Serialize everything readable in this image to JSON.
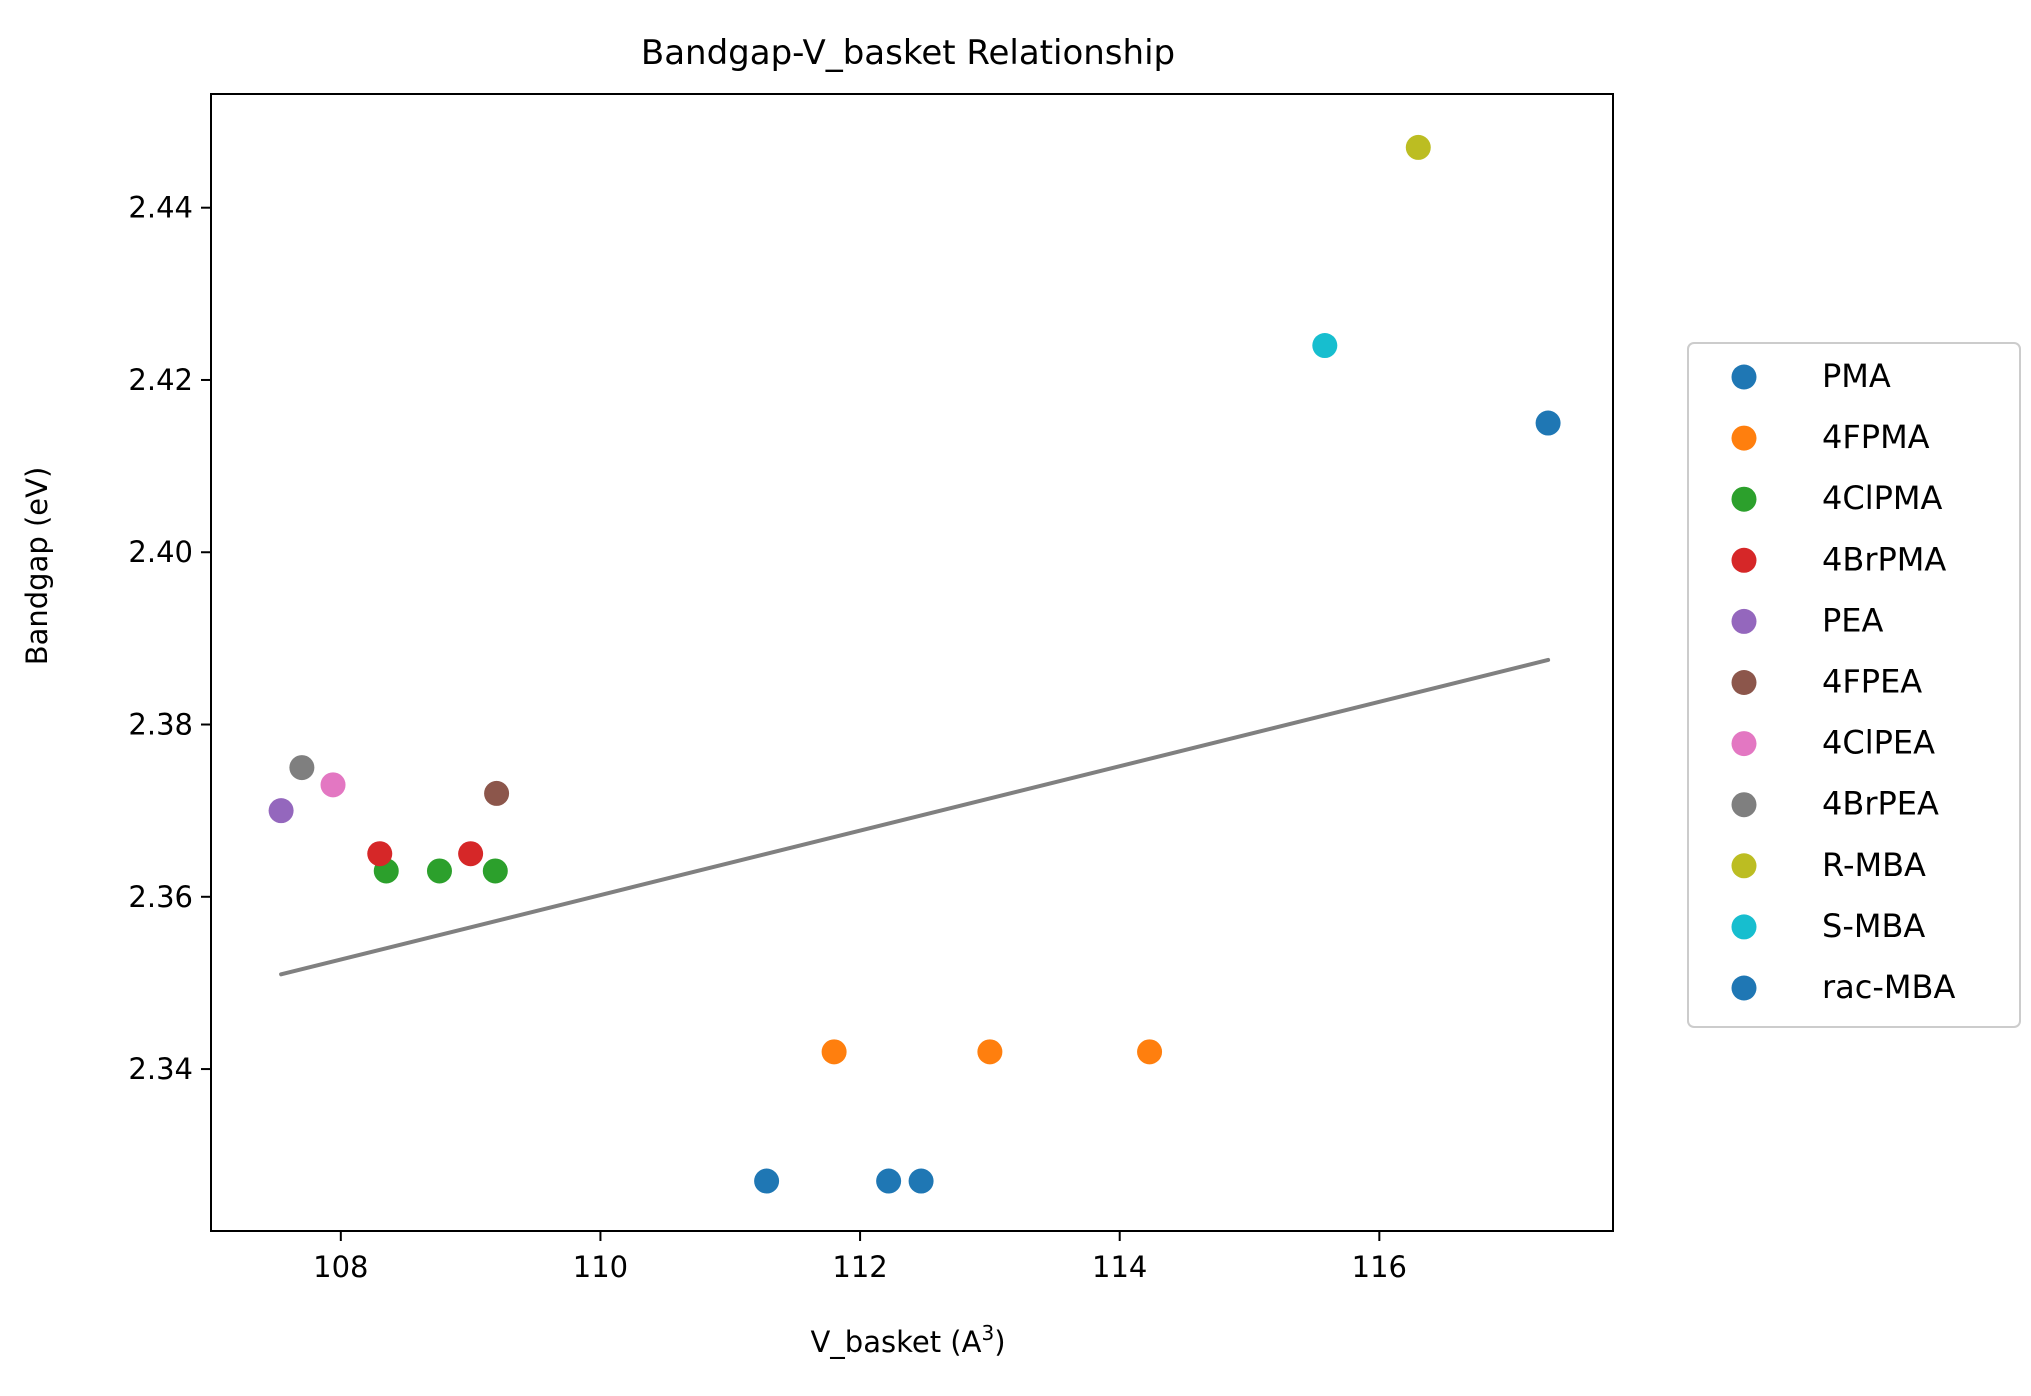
{
  "chart_data": {
    "type": "scatter",
    "title": "Bandgap-V_basket Relationship",
    "xlabel": "V_basket (A",
    "xlabel_sup": "3",
    "xlabel_suffix": ")",
    "ylabel": "Bandgap (eV)",
    "xlim": [
      107.0,
      117.8
    ],
    "ylim": [
      2.3212,
      2.4532
    ],
    "xticks": [
      108,
      110,
      112,
      114,
      116
    ],
    "xtick_labels": [
      "108",
      "110",
      "112",
      "114",
      "116"
    ],
    "yticks": [
      2.34,
      2.36,
      2.38,
      2.4,
      2.42,
      2.44
    ],
    "ytick_labels": [
      "2.34",
      "2.36",
      "2.38",
      "2.40",
      "2.42",
      "2.44"
    ],
    "grid": false,
    "legend_position": "right",
    "series": [
      {
        "name": "PMA",
        "color": "#1f77b4",
        "points": [
          [
            111.28,
            2.327
          ],
          [
            112.22,
            2.327
          ],
          [
            112.47,
            2.327
          ]
        ]
      },
      {
        "name": "4FPMA",
        "color": "#ff7f0e",
        "points": [
          [
            111.8,
            2.342
          ],
          [
            113.0,
            2.342
          ],
          [
            114.23,
            2.342
          ]
        ]
      },
      {
        "name": "4ClPMA",
        "color": "#2ca02c",
        "points": [
          [
            108.35,
            2.363
          ],
          [
            108.76,
            2.363
          ],
          [
            109.19,
            2.363
          ]
        ]
      },
      {
        "name": "4BrPMA",
        "color": "#d62728",
        "points": [
          [
            108.3,
            2.365
          ],
          [
            109.0,
            2.365
          ]
        ]
      },
      {
        "name": "PEA",
        "color": "#9467bd",
        "points": [
          [
            107.54,
            2.37
          ]
        ]
      },
      {
        "name": "4FPEA",
        "color": "#8c564b",
        "points": [
          [
            109.2,
            2.372
          ]
        ]
      },
      {
        "name": "4ClPEA",
        "color": "#e377c2",
        "points": [
          [
            107.94,
            2.373
          ]
        ]
      },
      {
        "name": "4BrPEA",
        "color": "#7f7f7f",
        "points": [
          [
            107.7,
            2.375
          ]
        ]
      },
      {
        "name": "R-MBA",
        "color": "#bcbd22",
        "points": [
          [
            116.3,
            2.447
          ]
        ]
      },
      {
        "name": "S-MBA",
        "color": "#17becf",
        "points": [
          [
            115.58,
            2.424
          ]
        ]
      },
      {
        "name": "rac-MBA",
        "color": "#1f77b4",
        "points": [
          [
            117.3,
            2.415
          ]
        ]
      }
    ],
    "trendline": {
      "color": "#808080",
      "points": [
        [
          107.54,
          2.351
        ],
        [
          117.3,
          2.3875
        ]
      ]
    }
  }
}
